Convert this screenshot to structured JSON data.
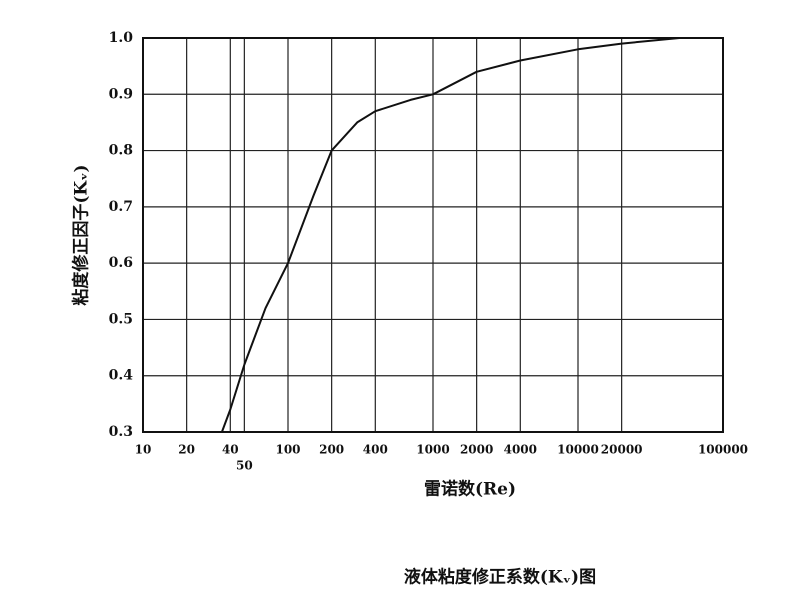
{
  "chart_data": {
    "type": "line",
    "title": "液体粘度修正系数(Kᵥ)图",
    "x_label": "雷诺数(Re)",
    "y_label": "粘度修正因子(Kᵥ)",
    "x_log": true,
    "grid": true,
    "xlim": [
      10,
      100000
    ],
    "xticks": [
      10,
      20,
      40,
      50,
      100,
      200,
      400,
      1000,
      2000,
      4000,
      10000,
      20000,
      100000
    ],
    "ylim": [
      0.3,
      1.0
    ],
    "yticks": [
      0.3,
      0.4,
      0.5,
      0.6,
      0.7,
      0.8,
      0.9,
      {
        "value": 1.0,
        "label": "1.0"
      }
    ],
    "series": [
      {
        "color": "#111111",
        "x": [
          35,
          40,
          50,
          70,
          100,
          150,
          200,
          300,
          400,
          700,
          1000,
          2000,
          4000,
          10000,
          20000,
          50000,
          100000
        ],
        "values": [
          0.3,
          0.34,
          0.42,
          0.52,
          0.6,
          0.72,
          0.8,
          0.85,
          0.87,
          0.89,
          0.9,
          0.94,
          0.96,
          0.98,
          0.99,
          1.0,
          1.0
        ]
      }
    ]
  }
}
